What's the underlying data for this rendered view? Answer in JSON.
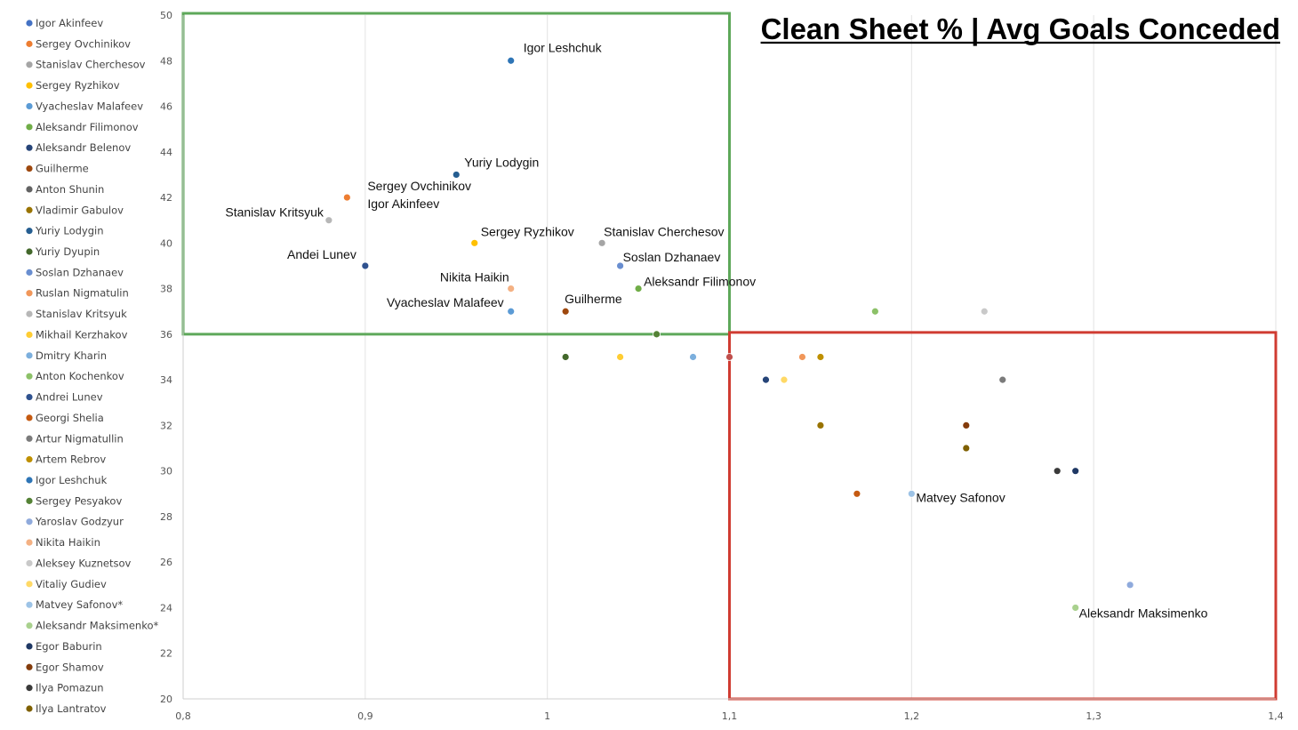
{
  "chart_data": {
    "type": "scatter",
    "title": "Clean Sheet % |  Avg Goals Conceded",
    "xlabel": "",
    "ylabel": "",
    "xlim": [
      0.8,
      1.4
    ],
    "ylim": [
      20,
      50
    ],
    "x_ticks": [
      "0,8",
      "0,9",
      "1",
      "1,1",
      "1,2",
      "1,3",
      "1,4"
    ],
    "y_ticks": [
      "20",
      "22",
      "24",
      "26",
      "28",
      "30",
      "32",
      "34",
      "36",
      "38",
      "40",
      "42",
      "44",
      "46",
      "48",
      "50"
    ],
    "grid": "vertical",
    "legend_position": "left",
    "series": [
      {
        "name": "Igor Akinfeev",
        "color": "#4472c4",
        "x": 0.89,
        "y": 42
      },
      {
        "name": "Sergey Ovchinikov",
        "color": "#ed7d31",
        "x": 0.89,
        "y": 42
      },
      {
        "name": "Stanislav Cherchesov",
        "color": "#a5a5a5",
        "x": 1.03,
        "y": 40
      },
      {
        "name": "Sergey Ryzhikov",
        "color": "#ffc000",
        "x": 0.96,
        "y": 40
      },
      {
        "name": "Vyacheslav Malafeev",
        "color": "#5b9bd5",
        "x": 0.98,
        "y": 37
      },
      {
        "name": "Aleksandr Filimonov",
        "color": "#70ad47",
        "x": 1.05,
        "y": 38
      },
      {
        "name": "Aleksandr Belenov",
        "color": "#264478",
        "x": 1.12,
        "y": 34
      },
      {
        "name": "Guilherme",
        "color": "#9e480e",
        "x": 1.01,
        "y": 37
      },
      {
        "name": "Anton Shunin",
        "color": "#636363",
        "x": 1.25,
        "y": 34
      },
      {
        "name": "Vladimir Gabulov",
        "color": "#997300",
        "x": 1.15,
        "y": 32
      },
      {
        "name": "Yuriy Lodygin",
        "color": "#255e91",
        "x": 0.95,
        "y": 43
      },
      {
        "name": "Yuriy Dyupin",
        "color": "#43682b",
        "x": 1.01,
        "y": 35
      },
      {
        "name": "Soslan Dzhanaev",
        "color": "#698ed0",
        "x": 1.04,
        "y": 39
      },
      {
        "name": "Ruslan Nigmatulin",
        "color": "#f1975a",
        "x": 1.14,
        "y": 35
      },
      {
        "name": "Stanislav Kritsyuk",
        "color": "#b7b7b7",
        "x": 0.88,
        "y": 41
      },
      {
        "name": "Mikhail Kerzhakov",
        "color": "#ffcd33",
        "x": 1.04,
        "y": 35
      },
      {
        "name": "Dmitry Kharin",
        "color": "#7cafdd",
        "x": 1.08,
        "y": 35
      },
      {
        "name": "Anton Kochenkov",
        "color": "#8cc168",
        "x": 1.18,
        "y": 37
      },
      {
        "name": "Andrei Lunev",
        "color": "#2f528f",
        "x": 0.9,
        "y": 39
      },
      {
        "name": "Georgi Shelia",
        "color": "#c55a11",
        "x": 1.17,
        "y": 29
      },
      {
        "name": "Artur Nigmatullin",
        "color": "#7b7b7b",
        "x": 1.25,
        "y": 34
      },
      {
        "name": "Artem Rebrov",
        "color": "#bf9000",
        "x": 1.15,
        "y": 35
      },
      {
        "name": "Igor Leshchuk",
        "color": "#2e75b6",
        "x": 0.98,
        "y": 48
      },
      {
        "name": "Sergey Pesyakov",
        "color": "#548235",
        "x": 1.06,
        "y": 36
      },
      {
        "name": "Yaroslav Godzyur",
        "color": "#8faadc",
        "x": 1.32,
        "y": 25
      },
      {
        "name": "Nikita Haikin",
        "color": "#f4b183",
        "x": 0.98,
        "y": 38
      },
      {
        "name": "Aleksey Kuznetsov",
        "color": "#c9c9c9",
        "x": 1.24,
        "y": 37
      },
      {
        "name": "Vitaliy Gudiev",
        "color": "#ffd966",
        "x": 1.13,
        "y": 34
      },
      {
        "name": "Matvey Safonov*",
        "color": "#9dc3e6",
        "x": 1.2,
        "y": 29
      },
      {
        "name": "Aleksandr Maksimenko*",
        "color": "#a9d18e",
        "x": 1.29,
        "y": 24
      },
      {
        "name": "Egor Baburin",
        "color": "#1f3864",
        "x": 1.29,
        "y": 30
      },
      {
        "name": "Egor Shamov",
        "color": "#843c0c",
        "x": 1.23,
        "y": 32
      },
      {
        "name": "Ilya Pomazun",
        "color": "#3a3a3a",
        "x": 1.28,
        "y": 30
      },
      {
        "name": "Ilya Lantratov",
        "color": "#7f6000",
        "x": 1.23,
        "y": 31
      }
    ],
    "extra_points": [
      {
        "color": "#c0504d",
        "x": 1.1,
        "y": 35
      }
    ],
    "annotations": [
      {
        "text": "Igor Leshchuk",
        "x": 0.98,
        "y": 48
      },
      {
        "text": "Yuriy Lodygin",
        "x": 0.95,
        "y": 43
      },
      {
        "text": "Sergey Ovchinikov",
        "x": 0.89,
        "y": 42
      },
      {
        "text": "Igor Akinfeev",
        "x": 0.89,
        "y": 42
      },
      {
        "text": "Stanislav Kritsyuk",
        "x": 0.88,
        "y": 41
      },
      {
        "text": "Sergey Ryzhikov",
        "x": 0.96,
        "y": 40
      },
      {
        "text": "Stanislav Cherchesov",
        "x": 1.03,
        "y": 40
      },
      {
        "text": "Andei Lunev",
        "x": 0.9,
        "y": 39
      },
      {
        "text": "Soslan Dzhanaev",
        "x": 1.04,
        "y": 39
      },
      {
        "text": "Nikita Haikin",
        "x": 0.98,
        "y": 38
      },
      {
        "text": "Aleksandr Filimonov",
        "x": 1.05,
        "y": 38
      },
      {
        "text": "Vyacheslav Malafeev",
        "x": 0.98,
        "y": 37
      },
      {
        "text": "Guilherme",
        "x": 1.01,
        "y": 37
      },
      {
        "text": "Matvey Safonov",
        "x": 1.2,
        "y": 29
      },
      {
        "text": "Aleksandr Maksimenko",
        "x": 1.29,
        "y": 24
      }
    ],
    "regions": [
      {
        "color": "#5ea85a",
        "x": [
          0.8,
          1.1
        ],
        "y": [
          36,
          50
        ]
      },
      {
        "color": "#d03c32",
        "x": [
          1.1,
          1.4
        ],
        "y": [
          20,
          36
        ]
      }
    ]
  }
}
